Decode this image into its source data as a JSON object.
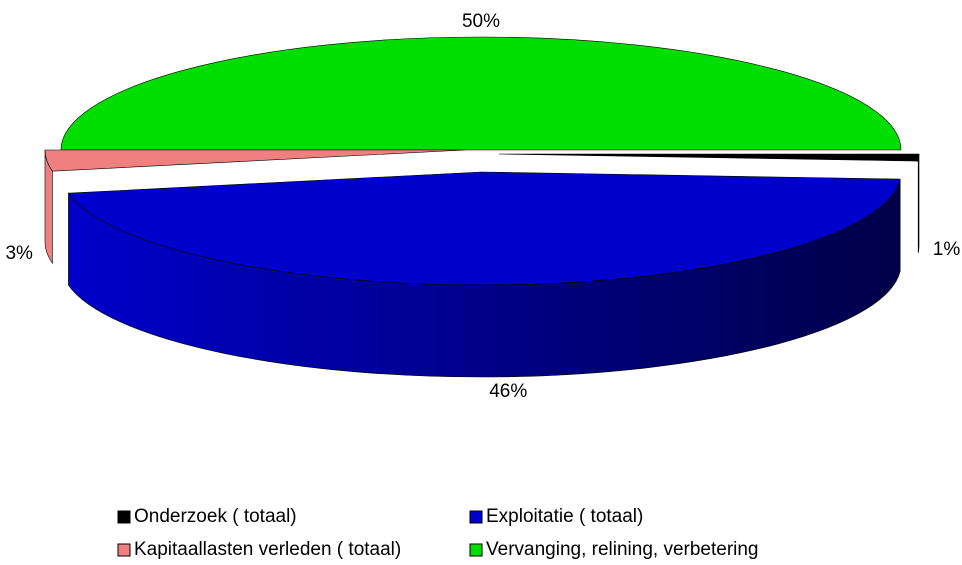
{
  "chart_data": {
    "type": "pie3d",
    "categories": [
      "Onderzoek ( totaal)",
      "Exploitatie ( totaal)",
      "Kapitaallasten verleden ( totaal)",
      "Vervanging, relining, verbetering"
    ],
    "values": [
      1,
      46,
      3,
      50
    ],
    "value_labels": [
      "1%",
      "46%",
      "3%",
      "50%"
    ],
    "colors": [
      "#000000",
      "#0000cc",
      "#f08080",
      "#00dd00"
    ]
  }
}
